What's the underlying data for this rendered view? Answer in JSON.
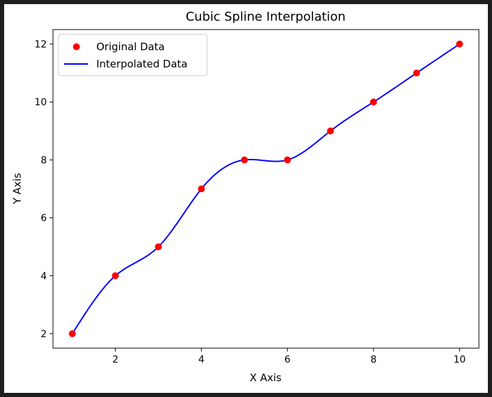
{
  "chart_data": {
    "type": "line",
    "title": "Cubic Spline Interpolation",
    "xlabel": "X Axis",
    "ylabel": "Y Axis",
    "xlim": [
      0.55,
      10.45
    ],
    "ylim": [
      1.5,
      12.5
    ],
    "x_ticks": [
      2,
      4,
      6,
      8,
      10
    ],
    "y_ticks": [
      2,
      4,
      6,
      8,
      10,
      12
    ],
    "grid": false,
    "legend_position": "top-left",
    "series": [
      {
        "name": "Original Data",
        "kind": "scatter",
        "color": "#ff0000",
        "x": [
          1,
          2,
          3,
          4,
          5,
          6,
          7,
          8,
          9,
          10
        ],
        "y": [
          2,
          4,
          5,
          7,
          8,
          8,
          9,
          10,
          11,
          12
        ]
      },
      {
        "name": "Interpolated Data",
        "kind": "line",
        "color": "#0000ff",
        "x": [
          1,
          2,
          3,
          4,
          5,
          6,
          7,
          8,
          9,
          10
        ],
        "y": [
          2,
          4,
          5,
          7,
          8,
          8,
          9,
          10,
          11,
          12
        ]
      }
    ]
  }
}
